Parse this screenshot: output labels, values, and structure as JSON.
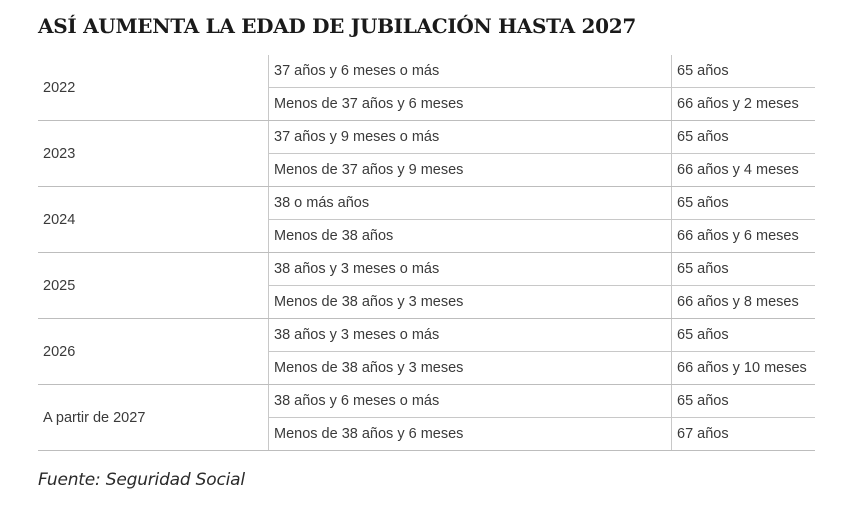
{
  "title": "ASÍ AUMENTA LA EDAD DE JUBILACIÓN HASTA 2027",
  "table": {
    "groups": [
      {
        "year": "2022",
        "rows": [
          {
            "condition": "37 años y 6 meses o más",
            "age": "65 años"
          },
          {
            "condition": "Menos de 37 años y 6 meses",
            "age": "66 años y 2 meses"
          }
        ]
      },
      {
        "year": "2023",
        "rows": [
          {
            "condition": "37 años y 9 meses o más",
            "age": "65 años"
          },
          {
            "condition": "Menos de 37 años y 9 meses",
            "age": "66 años y 4 meses"
          }
        ]
      },
      {
        "year": "2024",
        "rows": [
          {
            "condition": "38 o más años",
            "age": "65 años"
          },
          {
            "condition": "Menos de 38 años",
            "age": "66 años y 6 meses"
          }
        ]
      },
      {
        "year": "2025",
        "rows": [
          {
            "condition": "38 años y 3 meses o más",
            "age": "65 años"
          },
          {
            "condition": "Menos de 38 años y 3 meses",
            "age": "66 años y 8 meses"
          }
        ]
      },
      {
        "year": "2026",
        "rows": [
          {
            "condition": "38 años y 3 meses o más",
            "age": "65 años"
          },
          {
            "condition": "Menos de 38 años y 3 meses",
            "age": "66 años y 10 meses"
          }
        ]
      },
      {
        "year": "A partir de 2027",
        "rows": [
          {
            "condition": "38 años y 6 meses o más",
            "age": "65 años"
          },
          {
            "condition": "Menos de 38 años y 6 meses",
            "age": "67 años"
          }
        ]
      }
    ]
  },
  "source": "Fuente: Seguridad Social"
}
